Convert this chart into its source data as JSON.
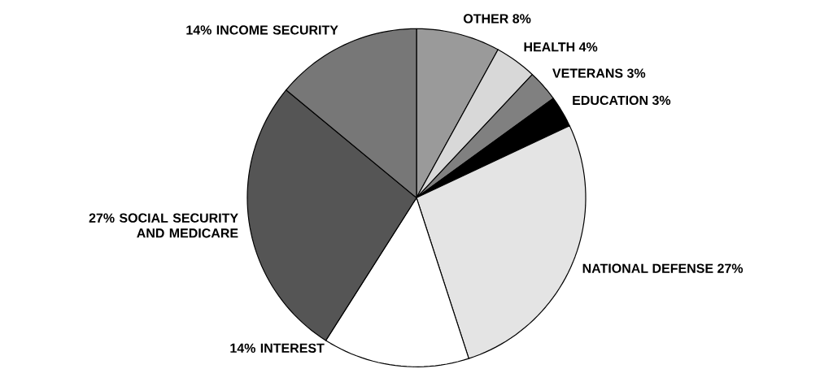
{
  "chart_data": {
    "type": "pie",
    "categories": [
      "OTHER",
      "HEALTH",
      "VETERANS",
      "EDUCATION",
      "NATIONAL DEFENSE",
      "INTEREST",
      "SOCIAL SECURITY AND MEDICARE",
      "INCOME SECURITY"
    ],
    "values": [
      8,
      4,
      3,
      3,
      27,
      14,
      27,
      14
    ],
    "value_labels": [
      "8%",
      "4%",
      "3%",
      "3%",
      "27%",
      "14%",
      "27%",
      "14%"
    ],
    "colors": [
      "#9a9a9a",
      "#d8d8d8",
      "#808080",
      "#000000",
      "#e4e4e4",
      "#ffffff",
      "#555555",
      "#777777"
    ]
  }
}
